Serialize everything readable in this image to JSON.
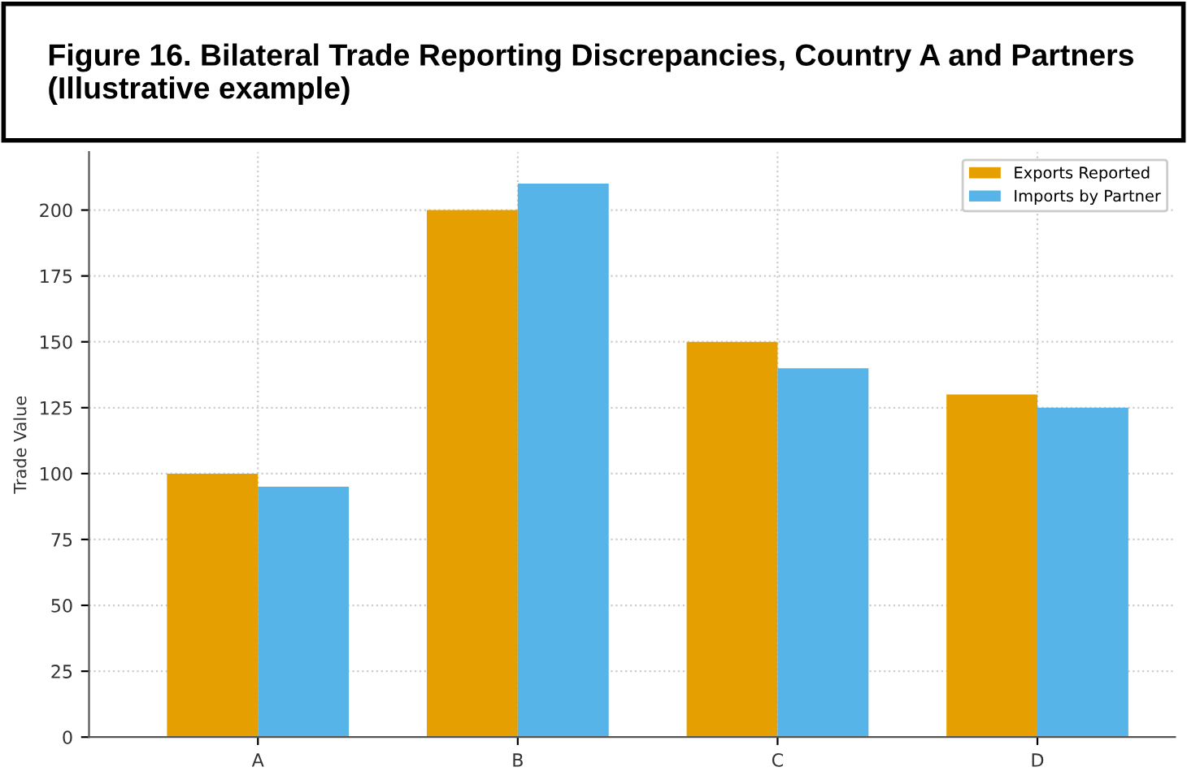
{
  "chart_data": {
    "type": "bar",
    "title": "Figure 16. Bilateral Trade Reporting Discrepancies, Country A and Partners (Illustrative example)",
    "ylabel": "Trade Value",
    "categories": [
      "A",
      "B",
      "C",
      "D"
    ],
    "series": [
      {
        "name": "Exports Reported",
        "color": "#e69f00",
        "values": [
          100,
          200,
          150,
          130
        ]
      },
      {
        "name": "Imports by Partner",
        "color": "#56b4e9",
        "values": [
          95,
          210,
          140,
          125
        ]
      }
    ],
    "ylim": [
      0,
      222
    ],
    "yticks": [
      0,
      25,
      50,
      75,
      100,
      125,
      150,
      175,
      200
    ],
    "grid": true,
    "legend": "top right"
  }
}
